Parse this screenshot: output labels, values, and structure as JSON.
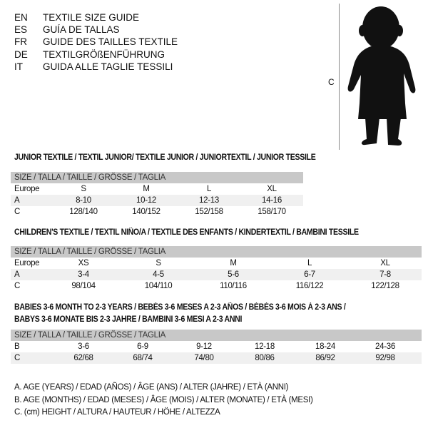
{
  "languages": [
    {
      "code": "EN",
      "title": "TEXTILE SIZE GUIDE"
    },
    {
      "code": "ES",
      "title": "GUÍA DE TALLAS"
    },
    {
      "code": "FR",
      "title": "GUIDE DES TAILLES TEXTILE"
    },
    {
      "code": "DE",
      "title": "TEXTILGRÖßENFÜHRUNG"
    },
    {
      "code": "IT",
      "title": "GUIDA ALLE TAGLIE TESSILI"
    }
  ],
  "figure": {
    "label": "C",
    "icon": "baby-silhouette"
  },
  "junior": {
    "title": "JUNIOR TEXTILE / TEXTIL JUNIOR/ TEXTILE JUNIOR / JUNIORTEXTIL / JUNIOR TESSILE",
    "header": "SIZE / TALLA / TAILLE / GRÖSSE / TAGLIA",
    "rows": [
      {
        "label": "Europe",
        "cells": [
          "S",
          "M",
          "L",
          "XL"
        ]
      },
      {
        "label": "A",
        "cells": [
          "8-10",
          "10-12",
          "12-13",
          "14-16"
        ]
      },
      {
        "label": "C",
        "cells": [
          "128/140",
          "140/152",
          "152/158",
          "158/170"
        ]
      }
    ]
  },
  "children": {
    "title": "CHILDREN'S TEXTILE / TEXTIL NIÑO/A / TEXTILE DES ENFANTS / KINDERTEXTIL / BAMBINI TESSILE",
    "header": "SIZE / TALLA / TAILLE / GRÖSSE / TAGLIA",
    "rows": [
      {
        "label": "Europe",
        "cells": [
          "XS",
          "S",
          "M",
          "L",
          "XL"
        ]
      },
      {
        "label": "A",
        "cells": [
          "3-4",
          "4-5",
          "5-6",
          "6-7",
          "7-8"
        ]
      },
      {
        "label": "C",
        "cells": [
          "98/104",
          "104/110",
          "110/116",
          "116/122",
          "122/128"
        ]
      }
    ]
  },
  "babies": {
    "title_line1": "BABIES 3-6 MONTH TO 2-3 YEARS / BEBÉS 3-6 MESES A 2-3 AÑOS / BÉBÉS 3-6 MOIS À 2-3 ANS /",
    "title_line2": "BABYS 3-6 MONATE BIS 2-3 JAHRE / BAMBINI 3-6 MESI A 2-3 ANNI",
    "header": "SIZE / TALLA / TAILLE / GRÖSSE / TAGLIA",
    "rows": [
      {
        "label": "B",
        "cells": [
          "3-6",
          "6-9",
          "9-12",
          "12-18",
          "18-24",
          "24-36"
        ]
      },
      {
        "label": "C",
        "cells": [
          "62/68",
          "68/74",
          "74/80",
          "80/86",
          "86/92",
          "92/98"
        ]
      }
    ]
  },
  "legend": [
    "A. AGE (YEARS) / EDAD (AÑOS) / ÂGE (ANS) / ALTER (JAHRE) / ETÀ (ANNI)",
    "B. AGE (MONTHS) / EDAD (MESES) / ÂGE (MOIS) / ALTER (MONATE) / ETÀ (MESI)",
    "C. (cm) HEIGHT / ALTURA / HAUTEUR / HÖHE / ALTEZZA"
  ]
}
